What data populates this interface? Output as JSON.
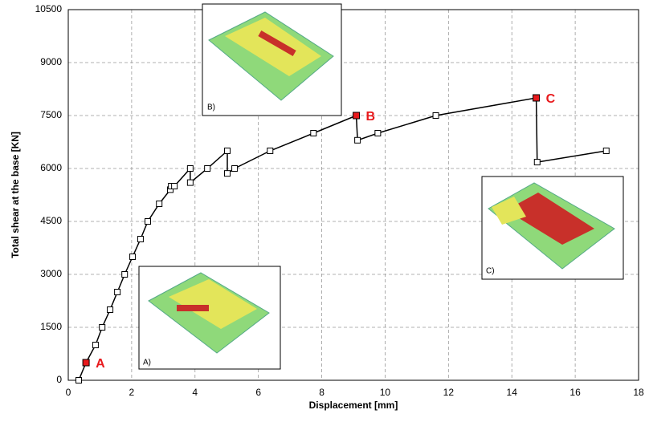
{
  "chart_data": {
    "type": "line",
    "xlabel": "Displacement [mm]",
    "ylabel": "Total shear at the base [KN]",
    "x": [
      0.33,
      0.56,
      0.86,
      1.07,
      1.32,
      1.55,
      1.78,
      2.03,
      2.28,
      2.51,
      2.87,
      3.22,
      3.25,
      3.35,
      3.85,
      3.85,
      4.39,
      5.02,
      5.02,
      5.25,
      6.37,
      7.74,
      9.09,
      9.13,
      9.77,
      11.6,
      14.77,
      14.8,
      16.98
    ],
    "series": [
      {
        "color": "#000000",
        "values": [
          0,
          500,
          1000,
          1500,
          2000,
          2500,
          3000,
          3500,
          4000,
          4500,
          5000,
          5400,
          5500,
          5500,
          6000,
          5600,
          6000,
          6500,
          5860,
          6000,
          6500,
          7000,
          7500,
          6800,
          7000,
          7500,
          8000,
          6180,
          6500
        ]
      }
    ],
    "points": [
      {
        "label": "A",
        "x": 0.56,
        "y": 500
      },
      {
        "label": "B",
        "x": 9.09,
        "y": 7500
      },
      {
        "label": "C",
        "x": 14.77,
        "y": 8000
      }
    ],
    "point_color": "#e8191c",
    "insets": [
      "A)",
      "B)",
      "C)"
    ],
    "xlim": [
      0,
      18
    ],
    "xticks": [
      0,
      2,
      4,
      6,
      8,
      10,
      12,
      14,
      16,
      18
    ],
    "ylim": [
      0,
      10500
    ],
    "yticks": [
      0,
      1500,
      3000,
      4500,
      6000,
      7500,
      9000,
      10500
    ],
    "grid": true
  }
}
